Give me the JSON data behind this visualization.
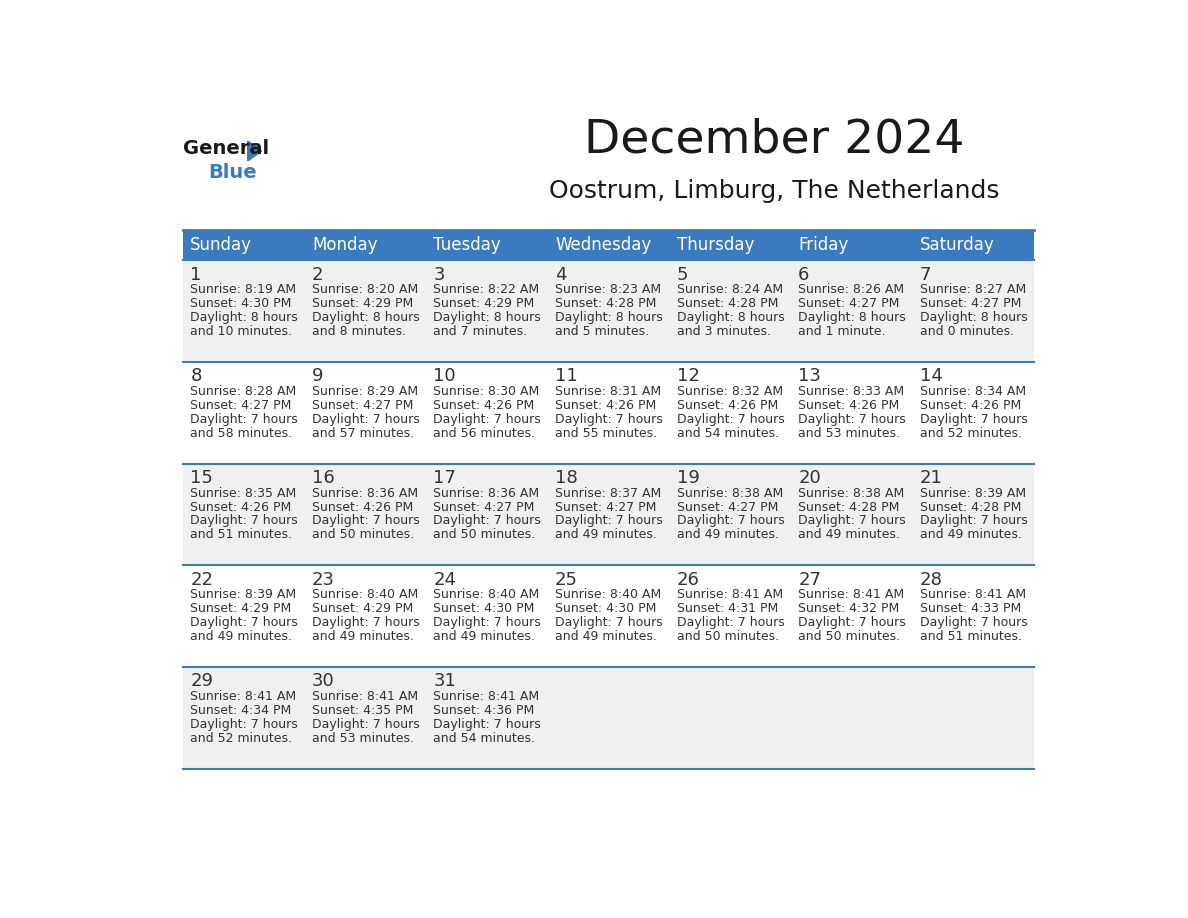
{
  "title": "December 2024",
  "subtitle": "Oostrum, Limburg, The Netherlands",
  "header_bg_color": "#3a7abf",
  "header_text_color": "#ffffff",
  "cell_bg_light": "#f0f0f0",
  "cell_bg_white": "#ffffff",
  "text_color": "#333333",
  "border_color": "#3a7abf",
  "days_of_week": [
    "Sunday",
    "Monday",
    "Tuesday",
    "Wednesday",
    "Thursday",
    "Friday",
    "Saturday"
  ],
  "weeks": [
    [
      {
        "day": "1",
        "sunrise": "8:19 AM",
        "sunset": "4:30 PM",
        "daylight1": "8 hours",
        "daylight2": "and 10 minutes."
      },
      {
        "day": "2",
        "sunrise": "8:20 AM",
        "sunset": "4:29 PM",
        "daylight1": "8 hours",
        "daylight2": "and 8 minutes."
      },
      {
        "day": "3",
        "sunrise": "8:22 AM",
        "sunset": "4:29 PM",
        "daylight1": "8 hours",
        "daylight2": "and 7 minutes."
      },
      {
        "day": "4",
        "sunrise": "8:23 AM",
        "sunset": "4:28 PM",
        "daylight1": "8 hours",
        "daylight2": "and 5 minutes."
      },
      {
        "day": "5",
        "sunrise": "8:24 AM",
        "sunset": "4:28 PM",
        "daylight1": "8 hours",
        "daylight2": "and 3 minutes."
      },
      {
        "day": "6",
        "sunrise": "8:26 AM",
        "sunset": "4:27 PM",
        "daylight1": "8 hours",
        "daylight2": "and 1 minute."
      },
      {
        "day": "7",
        "sunrise": "8:27 AM",
        "sunset": "4:27 PM",
        "daylight1": "8 hours",
        "daylight2": "and 0 minutes."
      }
    ],
    [
      {
        "day": "8",
        "sunrise": "8:28 AM",
        "sunset": "4:27 PM",
        "daylight1": "7 hours",
        "daylight2": "and 58 minutes."
      },
      {
        "day": "9",
        "sunrise": "8:29 AM",
        "sunset": "4:27 PM",
        "daylight1": "7 hours",
        "daylight2": "and 57 minutes."
      },
      {
        "day": "10",
        "sunrise": "8:30 AM",
        "sunset": "4:26 PM",
        "daylight1": "7 hours",
        "daylight2": "and 56 minutes."
      },
      {
        "day": "11",
        "sunrise": "8:31 AM",
        "sunset": "4:26 PM",
        "daylight1": "7 hours",
        "daylight2": "and 55 minutes."
      },
      {
        "day": "12",
        "sunrise": "8:32 AM",
        "sunset": "4:26 PM",
        "daylight1": "7 hours",
        "daylight2": "and 54 minutes."
      },
      {
        "day": "13",
        "sunrise": "8:33 AM",
        "sunset": "4:26 PM",
        "daylight1": "7 hours",
        "daylight2": "and 53 minutes."
      },
      {
        "day": "14",
        "sunrise": "8:34 AM",
        "sunset": "4:26 PM",
        "daylight1": "7 hours",
        "daylight2": "and 52 minutes."
      }
    ],
    [
      {
        "day": "15",
        "sunrise": "8:35 AM",
        "sunset": "4:26 PM",
        "daylight1": "7 hours",
        "daylight2": "and 51 minutes."
      },
      {
        "day": "16",
        "sunrise": "8:36 AM",
        "sunset": "4:26 PM",
        "daylight1": "7 hours",
        "daylight2": "and 50 minutes."
      },
      {
        "day": "17",
        "sunrise": "8:36 AM",
        "sunset": "4:27 PM",
        "daylight1": "7 hours",
        "daylight2": "and 50 minutes."
      },
      {
        "day": "18",
        "sunrise": "8:37 AM",
        "sunset": "4:27 PM",
        "daylight1": "7 hours",
        "daylight2": "and 49 minutes."
      },
      {
        "day": "19",
        "sunrise": "8:38 AM",
        "sunset": "4:27 PM",
        "daylight1": "7 hours",
        "daylight2": "and 49 minutes."
      },
      {
        "day": "20",
        "sunrise": "8:38 AM",
        "sunset": "4:28 PM",
        "daylight1": "7 hours",
        "daylight2": "and 49 minutes."
      },
      {
        "day": "21",
        "sunrise": "8:39 AM",
        "sunset": "4:28 PM",
        "daylight1": "7 hours",
        "daylight2": "and 49 minutes."
      }
    ],
    [
      {
        "day": "22",
        "sunrise": "8:39 AM",
        "sunset": "4:29 PM",
        "daylight1": "7 hours",
        "daylight2": "and 49 minutes."
      },
      {
        "day": "23",
        "sunrise": "8:40 AM",
        "sunset": "4:29 PM",
        "daylight1": "7 hours",
        "daylight2": "and 49 minutes."
      },
      {
        "day": "24",
        "sunrise": "8:40 AM",
        "sunset": "4:30 PM",
        "daylight1": "7 hours",
        "daylight2": "and 49 minutes."
      },
      {
        "day": "25",
        "sunrise": "8:40 AM",
        "sunset": "4:30 PM",
        "daylight1": "7 hours",
        "daylight2": "and 49 minutes."
      },
      {
        "day": "26",
        "sunrise": "8:41 AM",
        "sunset": "4:31 PM",
        "daylight1": "7 hours",
        "daylight2": "and 50 minutes."
      },
      {
        "day": "27",
        "sunrise": "8:41 AM",
        "sunset": "4:32 PM",
        "daylight1": "7 hours",
        "daylight2": "and 50 minutes."
      },
      {
        "day": "28",
        "sunrise": "8:41 AM",
        "sunset": "4:33 PM",
        "daylight1": "7 hours",
        "daylight2": "and 51 minutes."
      }
    ],
    [
      {
        "day": "29",
        "sunrise": "8:41 AM",
        "sunset": "4:34 PM",
        "daylight1": "7 hours",
        "daylight2": "and 52 minutes."
      },
      {
        "day": "30",
        "sunrise": "8:41 AM",
        "sunset": "4:35 PM",
        "daylight1": "7 hours",
        "daylight2": "and 53 minutes."
      },
      {
        "day": "31",
        "sunrise": "8:41 AM",
        "sunset": "4:36 PM",
        "daylight1": "7 hours",
        "daylight2": "and 54 minutes."
      },
      null,
      null,
      null,
      null
    ]
  ]
}
